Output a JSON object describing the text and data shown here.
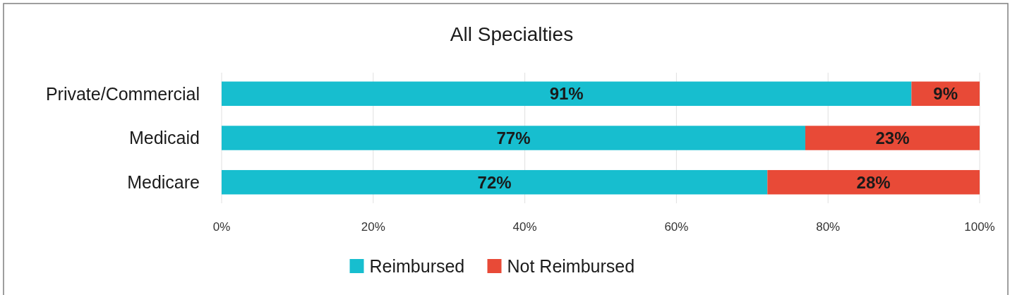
{
  "chart_data": {
    "type": "bar",
    "title": "All Specialties",
    "orientation": "horizontal",
    "stacked": true,
    "categories": [
      "Private/Commercial",
      "Medicaid",
      "Medicare"
    ],
    "series": [
      {
        "name": "Reimbursed",
        "color": "#17becf",
        "values": [
          91,
          77,
          72
        ]
      },
      {
        "name": "Not Reimbursed",
        "color": "#e84a37",
        "values": [
          9,
          23,
          28
        ]
      }
    ],
    "xlim": [
      0,
      100
    ],
    "xticks": [
      {
        "value": 0,
        "label": "0%"
      },
      {
        "value": 20,
        "label": "20%"
      },
      {
        "value": 40,
        "label": "40%"
      },
      {
        "value": 60,
        "label": "60%"
      },
      {
        "value": 80,
        "label": "80%"
      },
      {
        "value": 100,
        "label": "100%"
      }
    ],
    "grid": "x",
    "legend": "bottom",
    "value_labels": [
      [
        "91%",
        "77%",
        "72%"
      ],
      [
        "9%",
        "23%",
        "28%"
      ]
    ]
  }
}
